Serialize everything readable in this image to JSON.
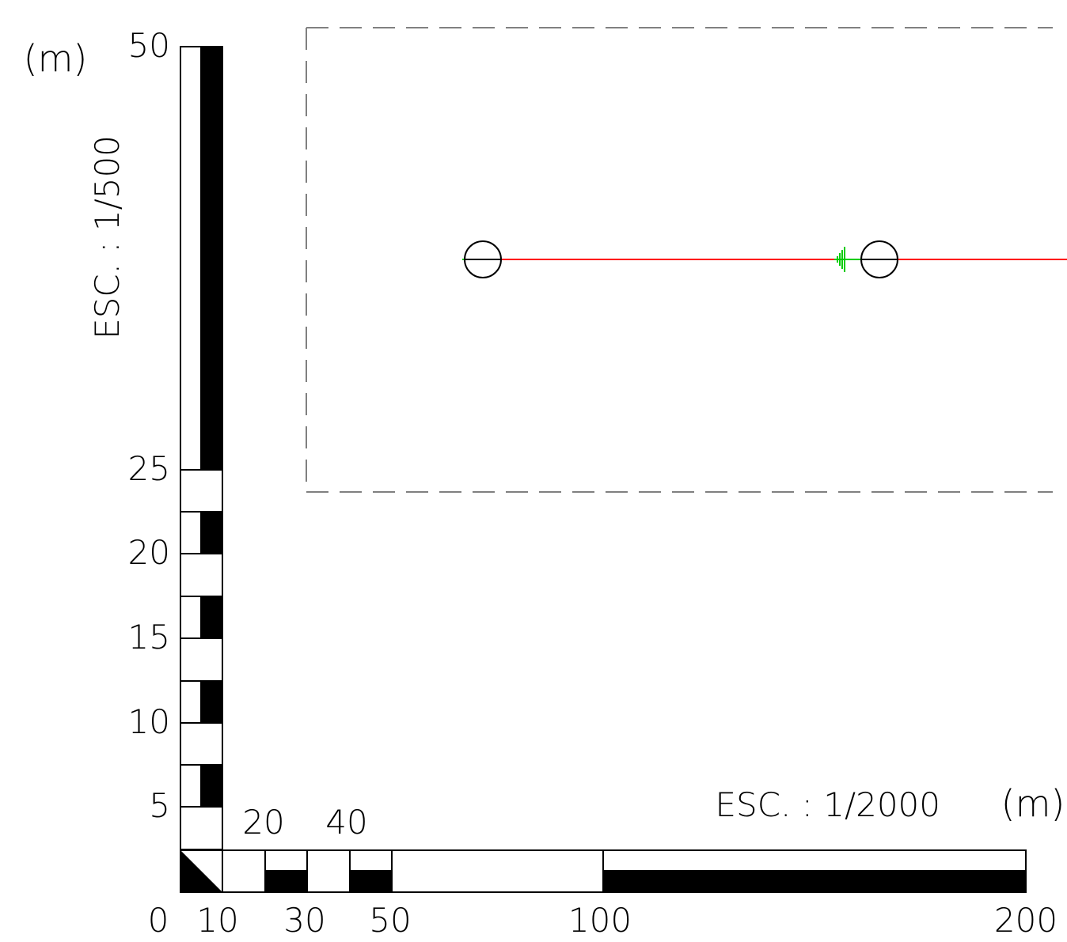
{
  "vertical_scale": {
    "unit_label": "(m)",
    "scale_label": "ESC. : 1/500",
    "tick_labels": [
      "50",
      "25",
      "20",
      "15",
      "10",
      "5"
    ]
  },
  "horizontal_scale": {
    "unit_label": "(m)",
    "scale_label": "ESC. : 1/2000",
    "top_labels": [
      "20",
      "40"
    ],
    "bottom_labels": [
      "0",
      "10",
      "30",
      "50",
      "100",
      "200"
    ]
  },
  "colors": {
    "ink": "#000000",
    "frame_dash": "#808080",
    "profile_line": "#ff0000",
    "marker": "#00cc00"
  }
}
